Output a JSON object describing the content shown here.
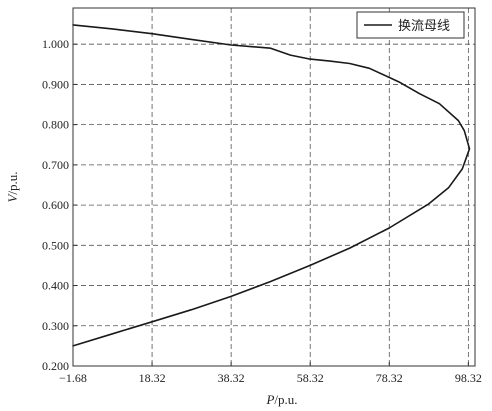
{
  "chart_data": {
    "type": "line",
    "title": "",
    "xlabel": "P/p.u.",
    "xlabel_var": "P",
    "xlabel_unit": "/p.u.",
    "ylabel": "V/p.u.",
    "ylabel_var": "V",
    "ylabel_unit": "/p.u.",
    "xlim": [
      -1.68,
      100.0
    ],
    "ylim": [
      0.2,
      1.09
    ],
    "x_ticks": [
      -1.68,
      18.32,
      38.32,
      58.32,
      78.32,
      98.32
    ],
    "x_tick_labels": [
      "−1.68",
      "18.32",
      "38.32",
      "58.32",
      "78.32",
      "98.32"
    ],
    "y_ticks": [
      0.2,
      0.3,
      0.4,
      0.5,
      0.6,
      0.7,
      0.8,
      0.9,
      1.0
    ],
    "y_tick_labels": [
      "0.200",
      "0.300",
      "0.400",
      "0.500",
      "0.600",
      "0.700",
      "0.800",
      "0.900",
      "1.000"
    ],
    "grid": true,
    "legend_position": "top-right",
    "series": [
      {
        "name": "换流母线",
        "color": "#1a1a1a",
        "points": [
          [
            -1.68,
            0.25
          ],
          [
            8.3,
            0.28
          ],
          [
            18.3,
            0.31
          ],
          [
            28.3,
            0.34
          ],
          [
            38.3,
            0.373
          ],
          [
            48.3,
            0.41
          ],
          [
            58.3,
            0.45
          ],
          [
            68.3,
            0.493
          ],
          [
            78.3,
            0.543
          ],
          [
            88.3,
            0.603
          ],
          [
            93.3,
            0.643
          ],
          [
            96.8,
            0.69
          ],
          [
            98.6,
            0.74
          ],
          [
            97.3,
            0.785
          ],
          [
            95.8,
            0.81
          ],
          [
            91.0,
            0.852
          ],
          [
            86.0,
            0.877
          ],
          [
            81.0,
            0.905
          ],
          [
            73.3,
            0.94
          ],
          [
            68.3,
            0.952
          ],
          [
            63.3,
            0.958
          ],
          [
            58.3,
            0.963
          ],
          [
            53.3,
            0.973
          ],
          [
            48.3,
            0.99
          ],
          [
            38.3,
            0.998
          ],
          [
            28.3,
            1.012
          ],
          [
            18.3,
            1.026
          ],
          [
            8.3,
            1.038
          ],
          [
            -1.68,
            1.048
          ]
        ]
      }
    ]
  }
}
